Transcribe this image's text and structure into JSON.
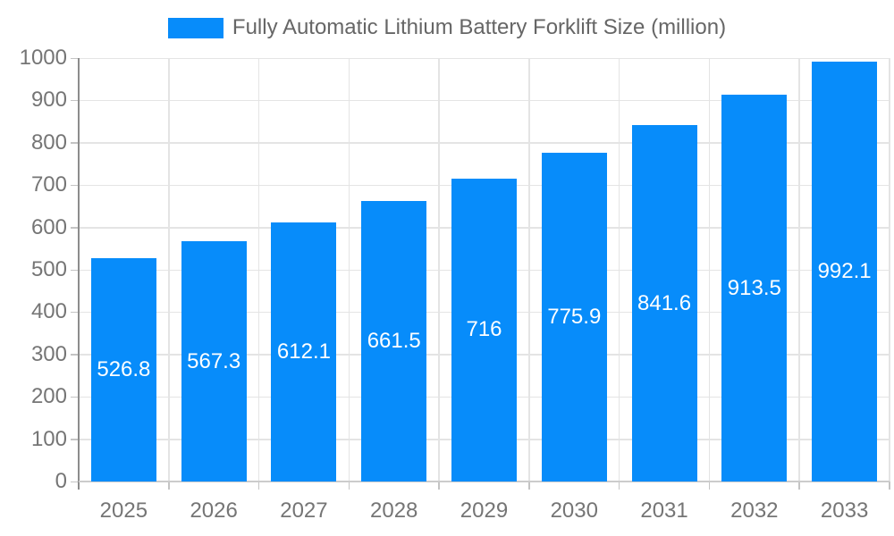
{
  "chart_data": {
    "type": "bar",
    "title": "Fully Automatic Lithium Battery Forklift Size (million)",
    "categories": [
      "2025",
      "2026",
      "2027",
      "2028",
      "2029",
      "2030",
      "2031",
      "2032",
      "2033"
    ],
    "values": [
      526.8,
      567.3,
      612.1,
      661.5,
      716,
      775.9,
      841.6,
      913.5,
      992.1
    ],
    "value_labels": [
      "526.8",
      "567.3",
      "612.1",
      "661.5",
      "716",
      "775.9",
      "841.6",
      "913.5",
      "992.1"
    ],
    "xlabel": "",
    "ylabel": "",
    "ylim": [
      0,
      1000
    ],
    "y_ticks": [
      0,
      100,
      200,
      300,
      400,
      500,
      600,
      700,
      800,
      900,
      1000
    ],
    "grid": true,
    "legend_position": "top-center",
    "colors": {
      "bar": "#078cfa",
      "value_label": "#ffffff",
      "tick_label": "#757575",
      "legend_text": "#666666",
      "y_axis_line": "#8c8c8c",
      "x_axis_line": "#cccccc",
      "tick_mark": "#c4c4c4",
      "gridline": "#e4e4e4",
      "background": "#ffffff"
    }
  }
}
